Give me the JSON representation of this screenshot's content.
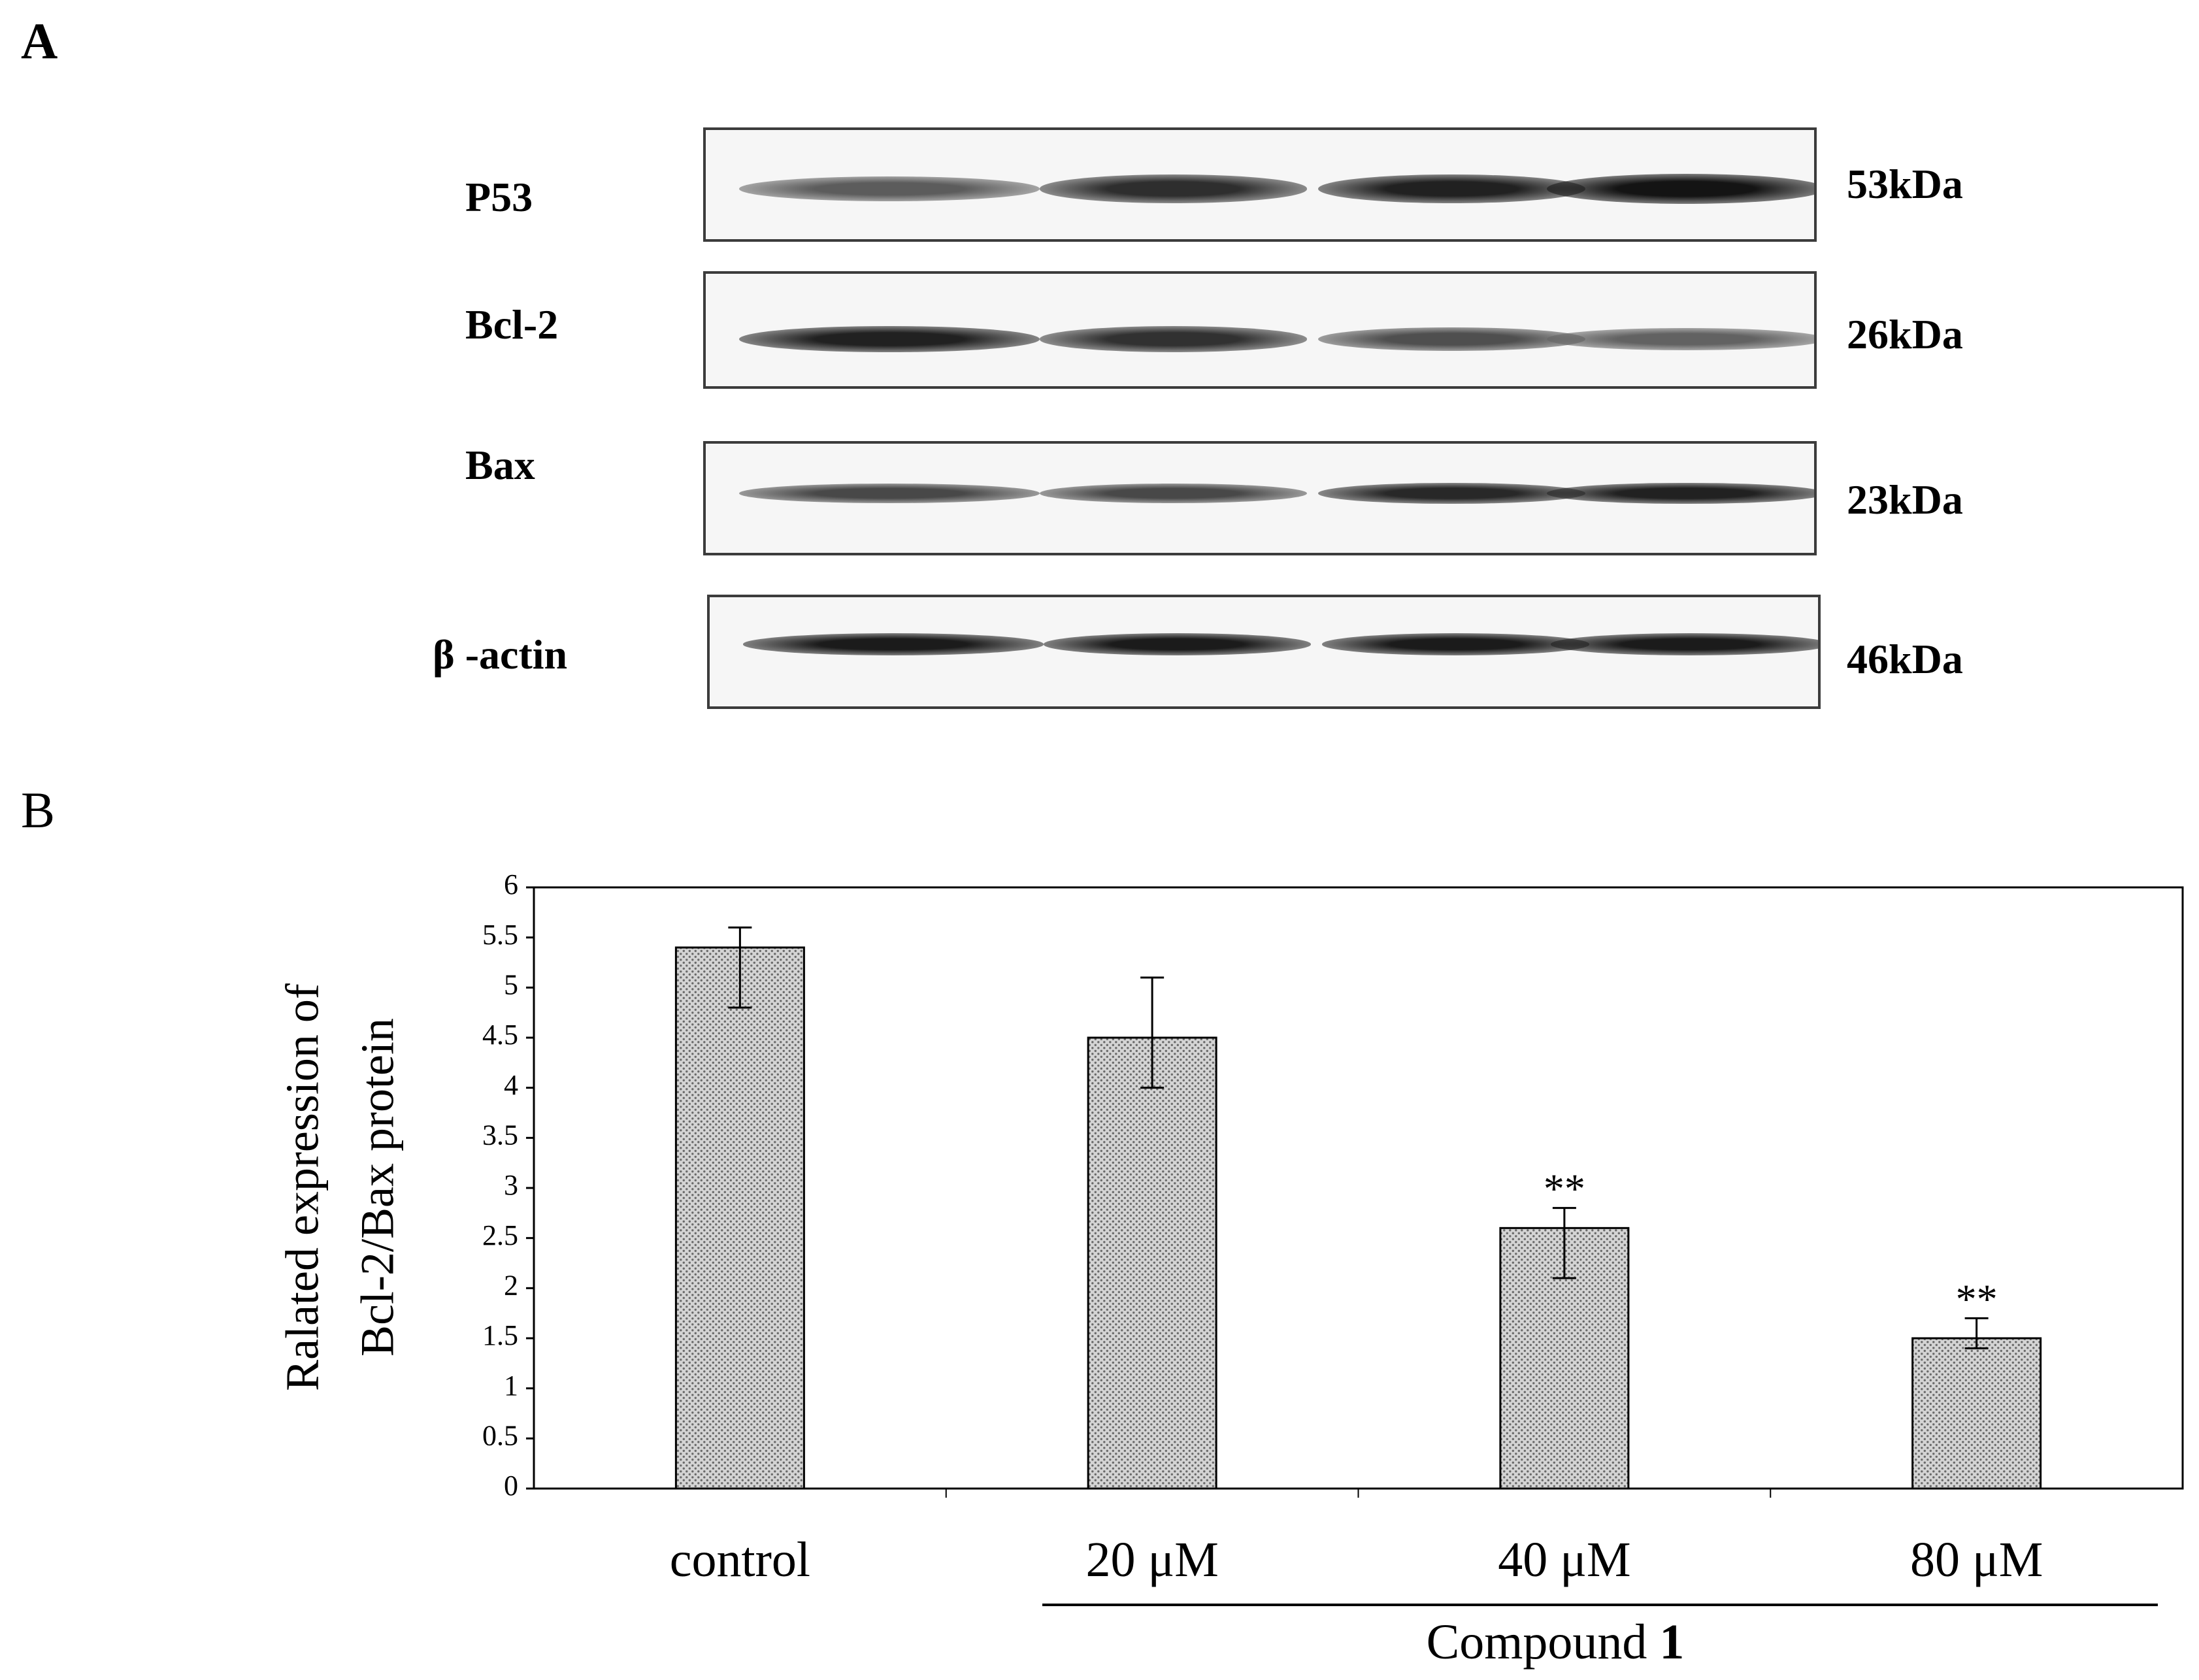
{
  "panel_a": {
    "letter": "A",
    "blots": [
      {
        "protein": "P53",
        "mw": "53kDa",
        "intensities": [
          0.45,
          0.8,
          0.9,
          1.0
        ]
      },
      {
        "protein": "Bcl-2",
        "mw": "26kDa",
        "intensities": [
          0.9,
          0.78,
          0.55,
          0.4
        ]
      },
      {
        "protein": "Bax",
        "mw": "23kDa",
        "intensities": [
          0.6,
          0.6,
          0.85,
          0.9
        ]
      },
      {
        "protein": "β -actin",
        "mw": "46kDa",
        "intensities": [
          0.95,
          0.95,
          0.95,
          0.95
        ]
      }
    ]
  },
  "panel_b": {
    "letter": "B",
    "group_label_prefix": "Compound ",
    "group_label_number": "1"
  },
  "chart_data": {
    "type": "bar",
    "categories": [
      "control",
      "20 μM",
      "40 μM",
      "80 μM"
    ],
    "values": [
      5.4,
      4.5,
      2.6,
      1.5
    ],
    "error_low": [
      4.8,
      4.0,
      2.1,
      1.4
    ],
    "error_high": [
      5.6,
      5.1,
      2.8,
      1.7
    ],
    "annotations": [
      "",
      "",
      "**",
      "**"
    ],
    "ylabel_line1": "Ralated expression of",
    "ylabel_line2": "Bcl-2/Bax protein",
    "xlabel": "",
    "ylim": [
      0,
      6
    ],
    "yticks": [
      "0",
      "0.5",
      "1",
      "1.5",
      "2",
      "2.5",
      "3",
      "3.5",
      "4",
      "4.5",
      "5",
      "5.5",
      "6"
    ],
    "grid": false,
    "bar_fill": "dotted gray pattern"
  }
}
